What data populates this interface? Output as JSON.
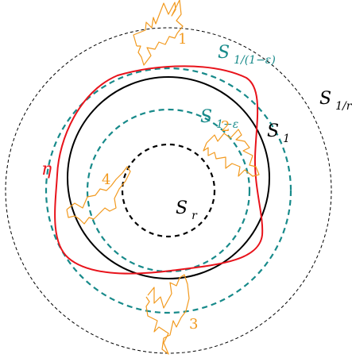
{
  "colors": {
    "background": "#ffffff",
    "outer_circle": "#000000",
    "teal": "#178a8a",
    "loop": "#e8131b",
    "paths": "#f29a1f",
    "unit_circle": "#000000"
  },
  "labels": {
    "s_outer": {
      "base": "S",
      "sub": "1/r"
    },
    "s_teal_outer": {
      "base": "S",
      "sub": "1/(1−ε)"
    },
    "s_teal_inner": {
      "base": "S",
      "sub": "1−ε"
    },
    "s_unit": {
      "base": "S",
      "sub": "1"
    },
    "s_inner": {
      "base": "S",
      "sub": "r"
    },
    "eta": "η"
  },
  "paths": [
    {
      "id": "path-1",
      "label": "1"
    },
    {
      "id": "path-2",
      "label": "2"
    },
    {
      "id": "path-3",
      "label": "3"
    },
    {
      "id": "path-4",
      "label": "4"
    }
  ]
}
